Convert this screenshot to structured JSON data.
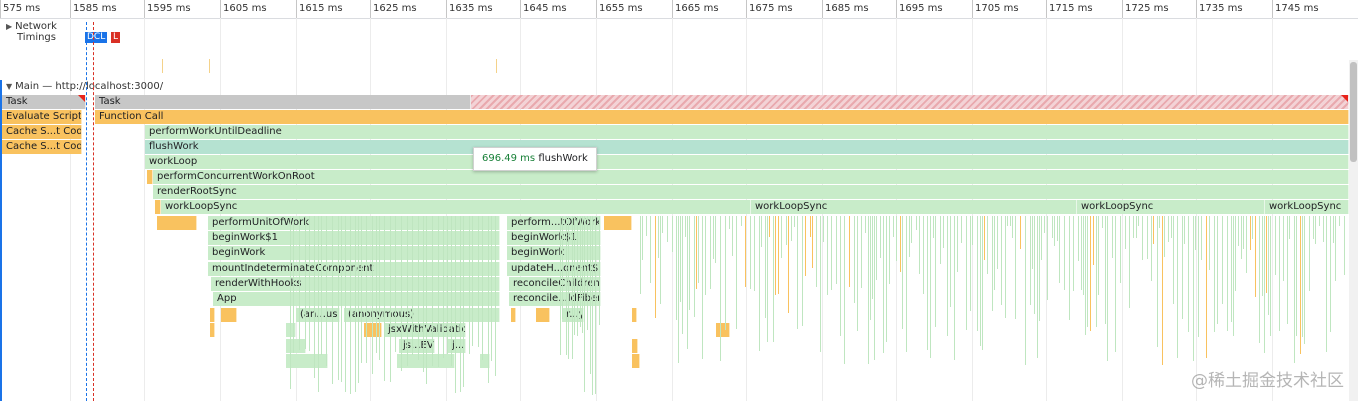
{
  "ruler": {
    "ticks": [
      "575 ms",
      "1585 ms",
      "1595 ms",
      "1605 ms",
      "1615 ms",
      "1625 ms",
      "1635 ms",
      "1645 ms",
      "1655 ms",
      "1665 ms",
      "1675 ms",
      "1685 ms",
      "1695 ms",
      "1705 ms",
      "1715 ms",
      "1725 ms",
      "1735 ms",
      "1745 ms"
    ]
  },
  "network": {
    "title_line1": "Network",
    "title_line2": "Timings",
    "dcl": "DCL",
    "l": "L"
  },
  "main": {
    "title": "Main — http://localhost:3000/"
  },
  "frames": {
    "task_1": "Task",
    "task_2": "Task",
    "evaluate_script": "Evaluate Script",
    "function_call": "Function Call",
    "cache_code_1": "Cache S...t Code",
    "cache_code_2": "Cache S...t Code",
    "perform_work_until_deadline": "performWorkUntilDeadline",
    "flush_work": "flushWork",
    "work_loop": "workLoop",
    "perform_concurrent_work_on_root": "performConcurrentWorkOnRoot",
    "render_root_sync": "renderRootSync",
    "work_loop_sync_1": "workLoopSync",
    "work_loop_sync_2": "workLoopSync",
    "work_loop_sync_3": "workLoopSync",
    "work_loop_sync_4": "workLoopSync",
    "perform_unit_of_work_1": "performUnitOfWork",
    "perform_unit_of_work_2": "perform...tOfWork",
    "begin_work_1a": "beginWork$1",
    "begin_work_1b": "beginWork$1",
    "begin_work_2a": "beginWork",
    "begin_work_2b": "beginWork",
    "mount_indeterminate": "mountIndeterminateComponent",
    "update_component": "updateH...onent$1",
    "render_with_hooks": "renderWithHooks",
    "reconcile_children": "reconcileChildren",
    "app": "App",
    "reconcile_fibers": "reconcile...ldFibers",
    "an_us": "(an...us)",
    "anonymous": "(anonymous)",
    "r_y": "r...y",
    "jsx_with_validation": "jsxWithValidation",
    "js_ev": "js...EV",
    "j": "j..."
  },
  "tooltip": {
    "duration": "696.49 ms",
    "name": "flushWork"
  },
  "watermark": "@稀土掘金技术社区",
  "colors": {
    "dcl": "#1a73e8",
    "load": "#d93025",
    "task": "#c7c7c7",
    "scripting": "#f9c25f",
    "rendering": "#c8ecc9"
  }
}
